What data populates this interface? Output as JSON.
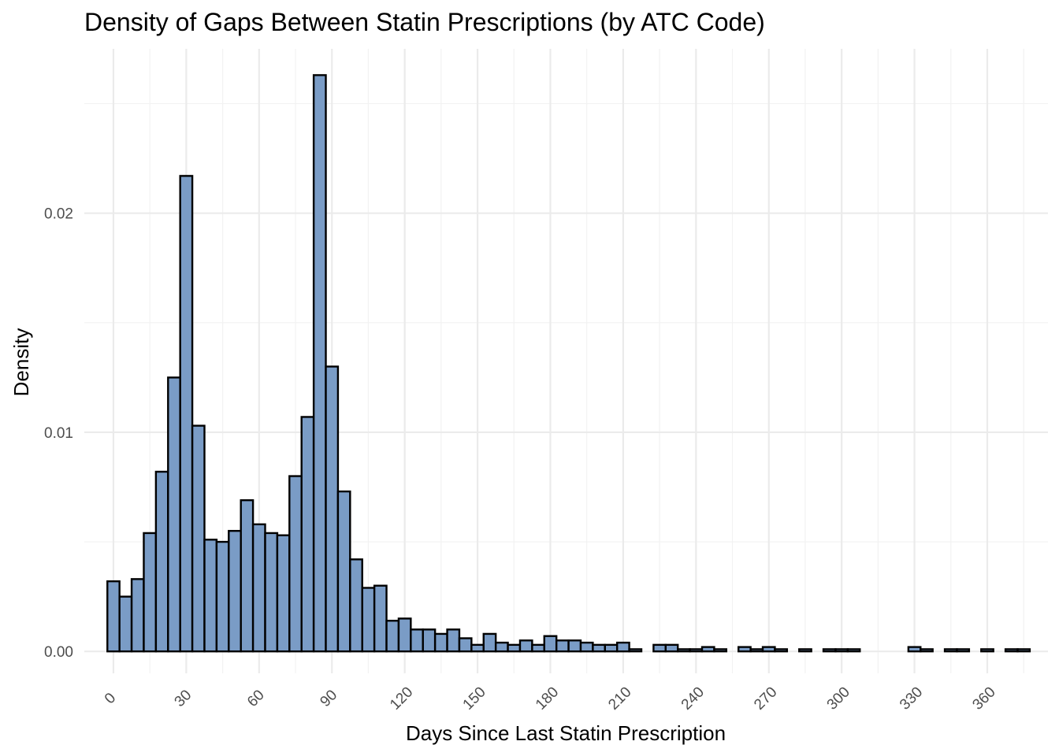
{
  "chart_data": {
    "type": "bar",
    "title": "Density of Gaps Between Statin Prescriptions (by ATC Code)",
    "xlabel": "Days Since Last Statin Prescription",
    "ylabel": "Density",
    "bin_width_days": 5,
    "x": [
      0,
      5,
      10,
      15,
      20,
      25,
      30,
      35,
      40,
      45,
      50,
      55,
      60,
      65,
      70,
      75,
      80,
      85,
      90,
      95,
      100,
      105,
      110,
      115,
      120,
      125,
      130,
      135,
      140,
      145,
      150,
      155,
      160,
      165,
      170,
      175,
      180,
      185,
      190,
      195,
      200,
      205,
      210,
      215,
      220,
      225,
      230,
      235,
      240,
      245,
      250,
      255,
      260,
      265,
      270,
      275,
      280,
      285,
      290,
      295,
      300,
      305,
      310,
      315,
      320,
      325,
      330,
      335,
      340,
      345,
      350,
      355,
      360,
      365,
      370,
      375
    ],
    "values": [
      0.0032,
      0.0025,
      0.0033,
      0.0054,
      0.0082,
      0.0125,
      0.0217,
      0.0103,
      0.0051,
      0.005,
      0.0055,
      0.0069,
      0.0058,
      0.0054,
      0.0053,
      0.008,
      0.0107,
      0.0263,
      0.013,
      0.0073,
      0.0042,
      0.0029,
      0.003,
      0.0014,
      0.0015,
      0.001,
      0.001,
      0.0008,
      0.001,
      0.0006,
      0.0003,
      0.0008,
      0.0004,
      0.0003,
      0.0005,
      0.0003,
      0.0007,
      0.0005,
      0.0005,
      0.0004,
      0.0003,
      0.0003,
      0.0004,
      0.0001,
      0.0,
      0.0003,
      0.0003,
      0.0001,
      0.0001,
      0.0002,
      0.0001,
      0.0,
      0.0002,
      0.0001,
      0.0002,
      0.0001,
      0.0,
      0.0001,
      0.0,
      0.0001,
      0.0001,
      0.0001,
      0.0,
      0.0,
      0.0,
      0.0,
      0.0002,
      0.0001,
      0.0,
      0.0001,
      0.0001,
      0.0,
      0.0001,
      0.0,
      0.0001,
      0.0001
    ],
    "xlim": [
      -12,
      385
    ],
    "ylim": [
      -0.001,
      0.0275
    ],
    "x_ticks": [
      0,
      30,
      60,
      90,
      120,
      150,
      180,
      210,
      240,
      270,
      300,
      330,
      360
    ],
    "x_tick_labels": [
      "0",
      "30",
      "60",
      "90",
      "120",
      "150",
      "180",
      "210",
      "240",
      "270",
      "300",
      "330",
      "360"
    ],
    "y_ticks": [
      0.0,
      0.01,
      0.02
    ],
    "y_tick_labels": [
      "0.00",
      "0.01",
      "0.02"
    ],
    "grid": true,
    "x_tick_rotation_deg": 45,
    "colors": {
      "bar_fill": "#7a9cc6",
      "bar_stroke": "#000000",
      "grid": "#ebebeb"
    }
  }
}
